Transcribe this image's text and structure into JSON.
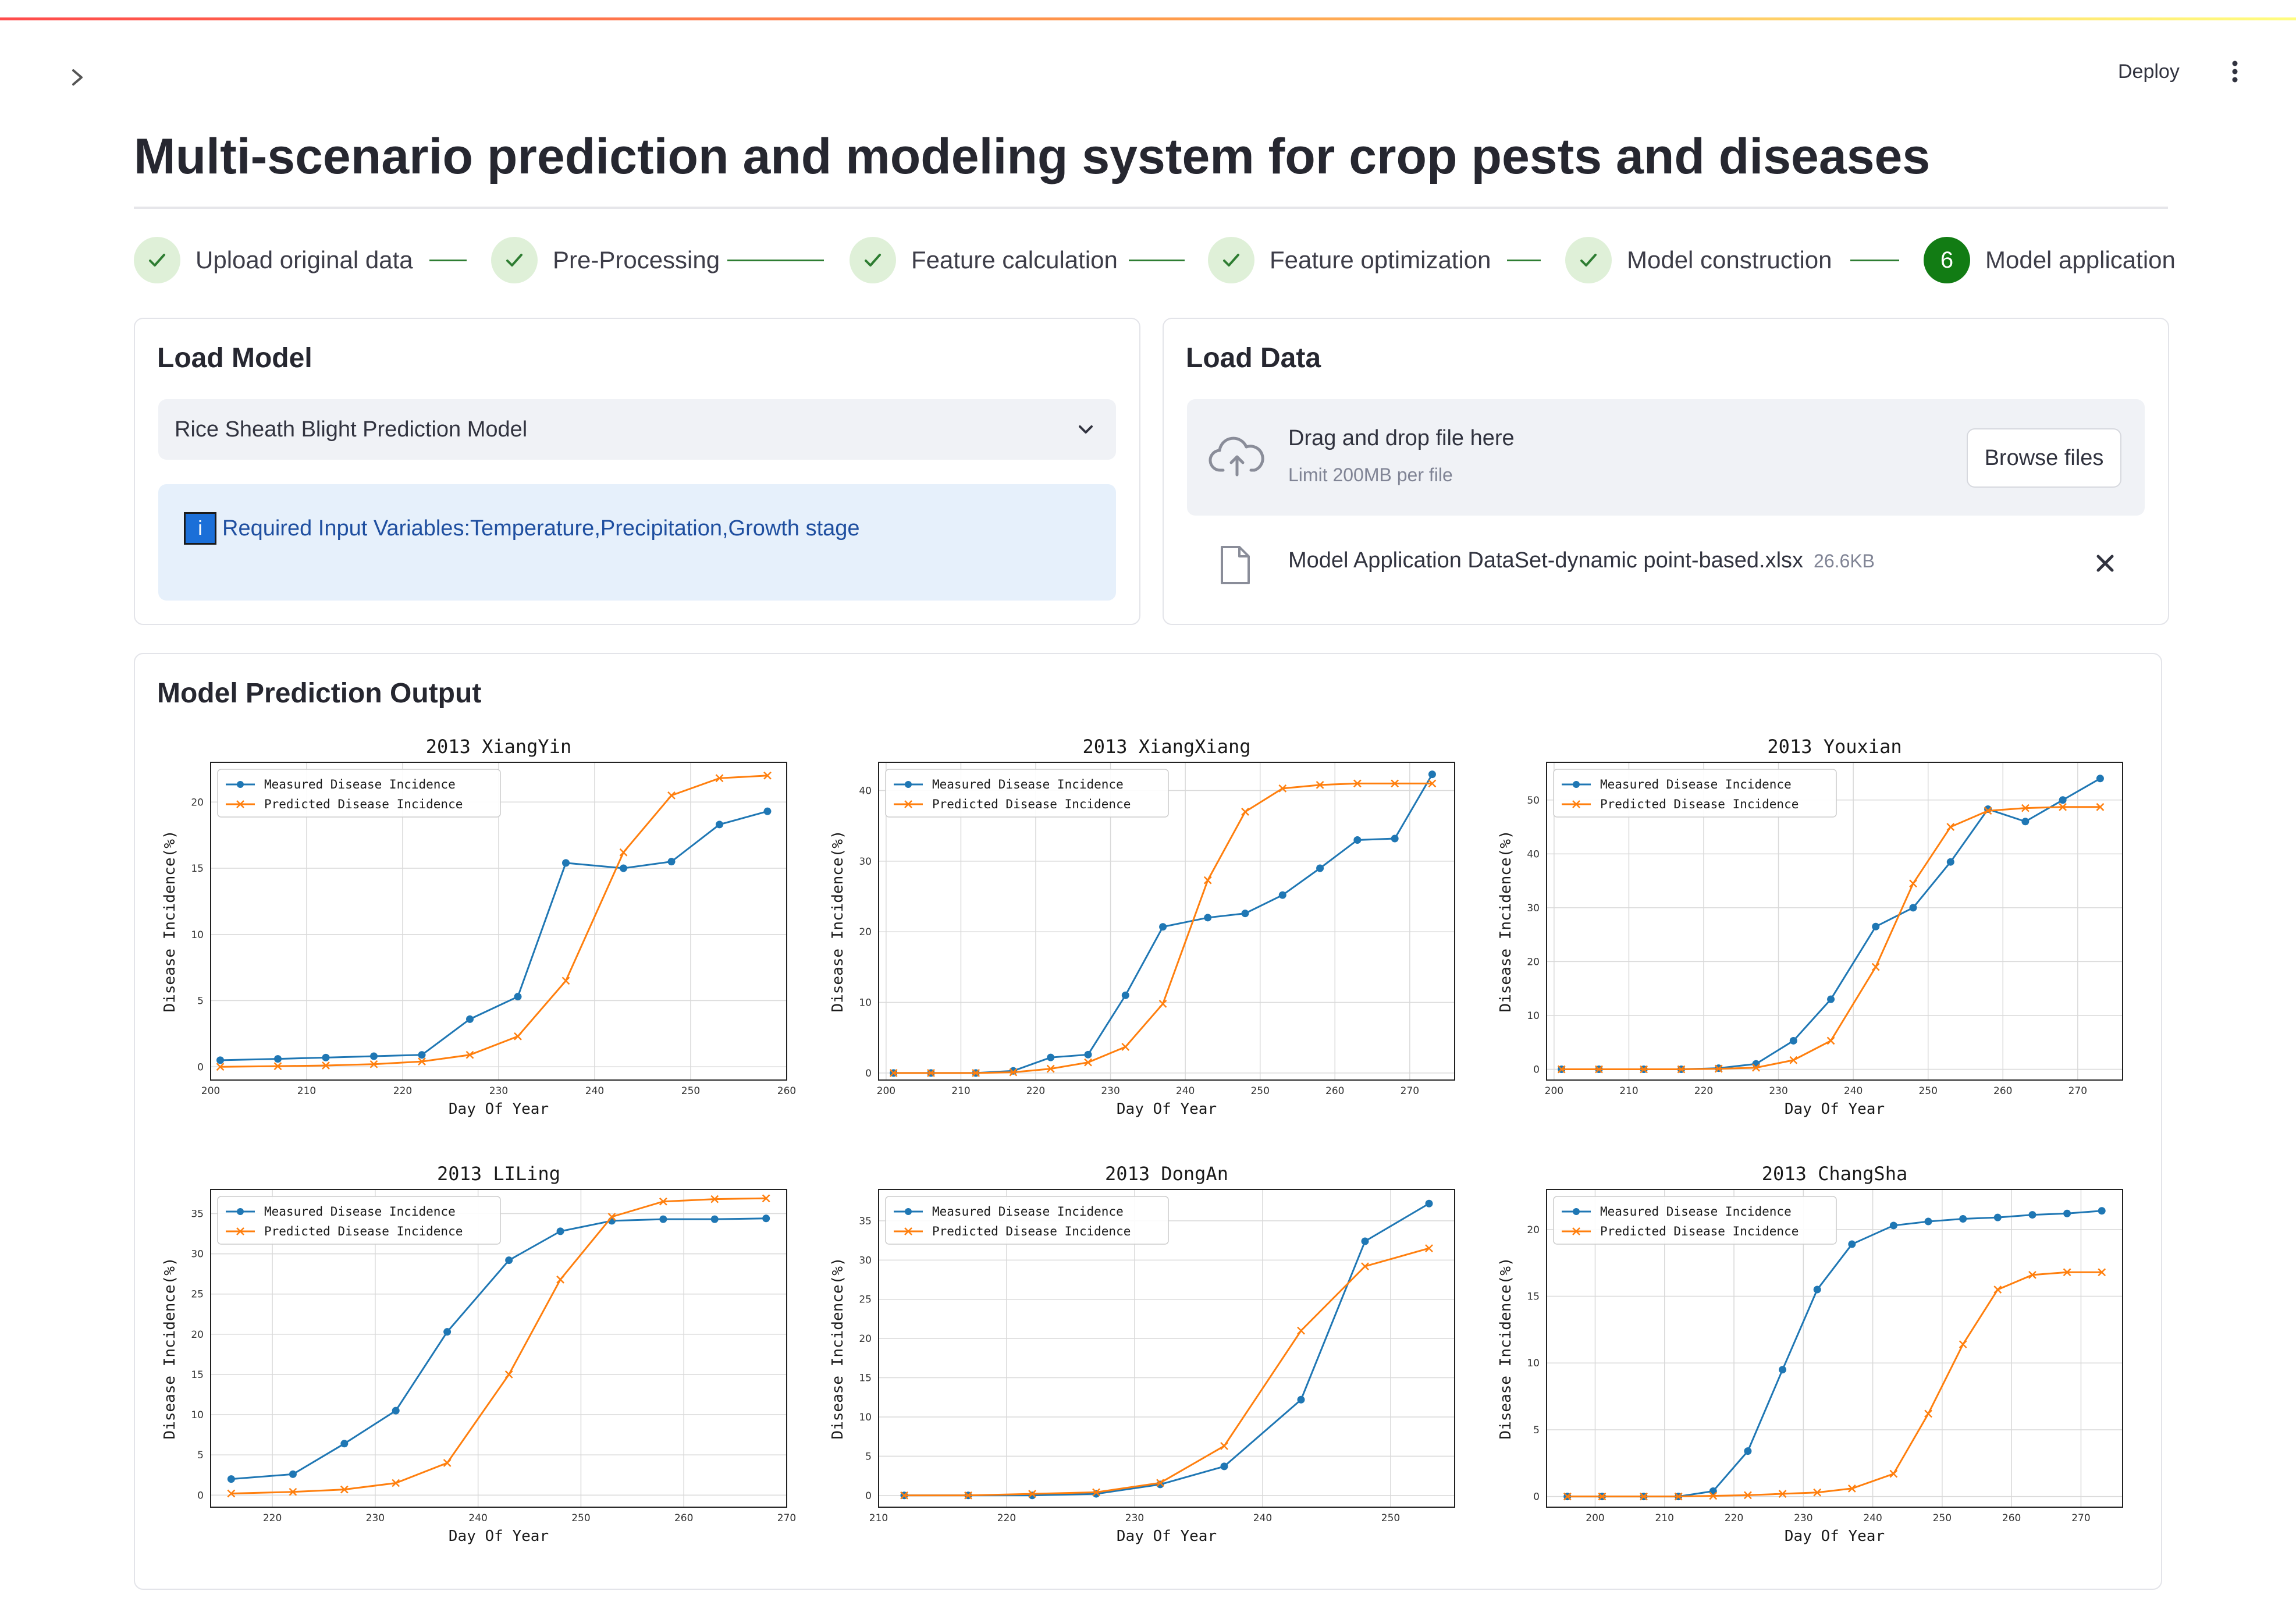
{
  "header": {
    "deploy_label": "Deploy"
  },
  "page": {
    "title": "Multi-scenario prediction and modeling system for crop pests and diseases"
  },
  "stepper": {
    "steps": [
      {
        "label": "Upload original data",
        "status": "done"
      },
      {
        "label": "Pre-Processing",
        "status": "done"
      },
      {
        "label": "Feature calculation",
        "status": "done"
      },
      {
        "label": "Feature optimization",
        "status": "done"
      },
      {
        "label": "Model construction",
        "status": "done"
      },
      {
        "label": "Model application",
        "status": "active",
        "number": "6"
      }
    ]
  },
  "load_model": {
    "title": "Load Model",
    "selected_model": "Rice Sheath Blight Prediction Model",
    "info_text": "Required Input Variables:Temperature,Precipitation,Growth stage"
  },
  "load_data": {
    "title": "Load Data",
    "dropzone_title": "Drag and drop file here",
    "dropzone_limit": "Limit 200MB per file",
    "browse_label": "Browse files",
    "file_name": "Model Application DataSet-dynamic point-based.xlsx",
    "file_size": "26.6KB"
  },
  "output": {
    "title": "Model Prediction Output"
  },
  "colors": {
    "measured": "#1f77b4",
    "predicted": "#ff7f0e",
    "step_done_bg": "#dff0d8",
    "step_check": "#2e7d32",
    "step_active": "#127c14"
  },
  "chart_data": [
    {
      "type": "line",
      "title": "2013 XiangYin",
      "xlabel": "Day Of Year",
      "ylabel": "Disease Incidence(%)",
      "xlim": [
        200,
        260
      ],
      "ylim": [
        -1,
        23
      ],
      "xticks": [
        200,
        210,
        220,
        230,
        240,
        250,
        260
      ],
      "yticks": [
        0,
        5,
        10,
        15,
        20
      ],
      "grid": true,
      "legend": "upper-left",
      "series": [
        {
          "name": "Measured Disease Incidence",
          "marker": "dot",
          "x": [
            201,
            207,
            212,
            217,
            222,
            227,
            232,
            237,
            243,
            248,
            253,
            258
          ],
          "y": [
            0.5,
            0.6,
            0.7,
            0.8,
            0.9,
            3.6,
            5.3,
            15.4,
            15.0,
            15.5,
            18.3,
            19.3
          ]
        },
        {
          "name": "Predicted Disease Incidence",
          "marker": "x",
          "x": [
            201,
            207,
            212,
            217,
            222,
            227,
            232,
            237,
            243,
            248,
            253,
            258
          ],
          "y": [
            0.0,
            0.05,
            0.1,
            0.2,
            0.4,
            0.9,
            2.3,
            6.5,
            16.2,
            20.5,
            21.8,
            22.0
          ]
        }
      ]
    },
    {
      "type": "line",
      "title": "2013 XiangXiang",
      "xlabel": "Day Of Year",
      "ylabel": "Disease Incidence(%)",
      "xlim": [
        199,
        276
      ],
      "ylim": [
        -1,
        44
      ],
      "xticks": [
        200,
        210,
        220,
        230,
        240,
        250,
        260,
        270
      ],
      "yticks": [
        0,
        10,
        20,
        30,
        40
      ],
      "grid": true,
      "legend": "upper-left",
      "series": [
        {
          "name": "Measured Disease Incidence",
          "marker": "dot",
          "x": [
            201,
            206,
            212,
            217,
            222,
            227,
            232,
            237,
            243,
            248,
            253,
            258,
            263,
            268,
            273
          ],
          "y": [
            0,
            0,
            0,
            0.3,
            2.2,
            2.6,
            11,
            20.7,
            22,
            22.6,
            25.2,
            29,
            33,
            33.2,
            42.3
          ]
        },
        {
          "name": "Predicted Disease Incidence",
          "marker": "x",
          "x": [
            201,
            206,
            212,
            217,
            222,
            227,
            232,
            237,
            243,
            248,
            253,
            258,
            263,
            268,
            273
          ],
          "y": [
            0,
            0,
            0,
            0.1,
            0.6,
            1.5,
            3.7,
            9.8,
            27.3,
            37,
            40.3,
            40.8,
            41,
            41,
            41
          ]
        }
      ]
    },
    {
      "type": "line",
      "title": "2013 Youxian",
      "xlabel": "Day Of Year",
      "ylabel": "Disease Incidence(%)",
      "xlim": [
        199,
        276
      ],
      "ylim": [
        -2,
        57
      ],
      "xticks": [
        200,
        210,
        220,
        230,
        240,
        250,
        260,
        270
      ],
      "yticks": [
        0,
        10,
        20,
        30,
        40,
        50
      ],
      "grid": true,
      "legend": "upper-left",
      "series": [
        {
          "name": "Measured Disease Incidence",
          "marker": "dot",
          "x": [
            201,
            206,
            212,
            217,
            222,
            227,
            232,
            237,
            243,
            248,
            253,
            258,
            263,
            268,
            273
          ],
          "y": [
            0,
            0,
            0,
            0,
            0.2,
            1,
            5.3,
            13,
            26.5,
            30,
            38.5,
            48.3,
            46,
            50,
            54
          ]
        },
        {
          "name": "Predicted Disease Incidence",
          "marker": "x",
          "x": [
            201,
            206,
            212,
            217,
            222,
            227,
            232,
            237,
            243,
            248,
            253,
            258,
            263,
            268,
            273
          ],
          "y": [
            0,
            0,
            0,
            0,
            0.1,
            0.3,
            1.7,
            5.3,
            19,
            34.5,
            45,
            48,
            48.5,
            48.7,
            48.7
          ]
        }
      ]
    },
    {
      "type": "line",
      "title": "2013 LILing",
      "xlabel": "Day Of Year",
      "ylabel": "Disease Incidence(%)",
      "xlim": [
        214,
        270
      ],
      "ylim": [
        -1.5,
        38
      ],
      "xticks": [
        220,
        230,
        240,
        250,
        260,
        270
      ],
      "yticks": [
        0,
        5,
        10,
        15,
        20,
        25,
        30,
        35
      ],
      "grid": true,
      "legend": "upper-left",
      "series": [
        {
          "name": "Measured Disease Incidence",
          "marker": "dot",
          "x": [
            216,
            222,
            227,
            232,
            237,
            243,
            248,
            253,
            258,
            263,
            268
          ],
          "y": [
            2,
            2.6,
            6.4,
            10.5,
            20.3,
            29.2,
            32.8,
            34.1,
            34.3,
            34.3,
            34.4
          ]
        },
        {
          "name": "Predicted Disease Incidence",
          "marker": "x",
          "x": [
            216,
            222,
            227,
            232,
            237,
            243,
            248,
            253,
            258,
            263,
            268
          ],
          "y": [
            0.2,
            0.4,
            0.7,
            1.5,
            4,
            15,
            26.8,
            34.6,
            36.5,
            36.8,
            36.9
          ]
        }
      ]
    },
    {
      "type": "line",
      "title": "2013 DongAn",
      "xlabel": "Day Of Year",
      "ylabel": "Disease Incidence(%)",
      "xlim": [
        210,
        255
      ],
      "ylim": [
        -1.5,
        39
      ],
      "xticks": [
        210,
        220,
        230,
        240,
        250
      ],
      "yticks": [
        0,
        5,
        10,
        15,
        20,
        25,
        30,
        35
      ],
      "grid": true,
      "legend": "upper-left",
      "series": [
        {
          "name": "Measured Disease Incidence",
          "marker": "dot",
          "x": [
            212,
            217,
            222,
            227,
            232,
            237,
            243,
            248,
            253
          ],
          "y": [
            0,
            0,
            0,
            0.2,
            1.4,
            3.7,
            12.2,
            32.4,
            37.2
          ]
        },
        {
          "name": "Predicted Disease Incidence",
          "marker": "x",
          "x": [
            212,
            217,
            222,
            227,
            232,
            237,
            243,
            248,
            253
          ],
          "y": [
            0,
            0,
            0.2,
            0.4,
            1.6,
            6.3,
            21,
            29.2,
            31.5
          ]
        }
      ]
    },
    {
      "type": "line",
      "title": "2013 ChangSha",
      "xlabel": "Day Of Year",
      "ylabel": "Disease Incidence(%)",
      "xlim": [
        193,
        276
      ],
      "ylim": [
        -0.8,
        23
      ],
      "xticks": [
        200,
        210,
        220,
        230,
        240,
        250,
        260,
        270
      ],
      "yticks": [
        0,
        5,
        10,
        15,
        20
      ],
      "grid": true,
      "legend": "upper-left",
      "series": [
        {
          "name": "Measured Disease Incidence",
          "marker": "dot",
          "x": [
            196,
            201,
            207,
            212,
            217,
            222,
            227,
            232,
            237,
            243,
            248,
            253,
            258,
            263,
            268,
            273
          ],
          "y": [
            0,
            0,
            0,
            0,
            0.4,
            3.4,
            9.5,
            15.5,
            18.9,
            20.3,
            20.6,
            20.8,
            20.9,
            21.1,
            21.2,
            21.4
          ]
        },
        {
          "name": "Predicted Disease Incidence",
          "marker": "x",
          "x": [
            196,
            201,
            207,
            212,
            217,
            222,
            227,
            232,
            237,
            243,
            248,
            253,
            258,
            263,
            268,
            273
          ],
          "y": [
            0,
            0,
            0,
            0,
            0.05,
            0.1,
            0.2,
            0.3,
            0.6,
            1.7,
            6.2,
            11.4,
            15.5,
            16.6,
            16.8,
            16.8
          ]
        }
      ]
    }
  ]
}
